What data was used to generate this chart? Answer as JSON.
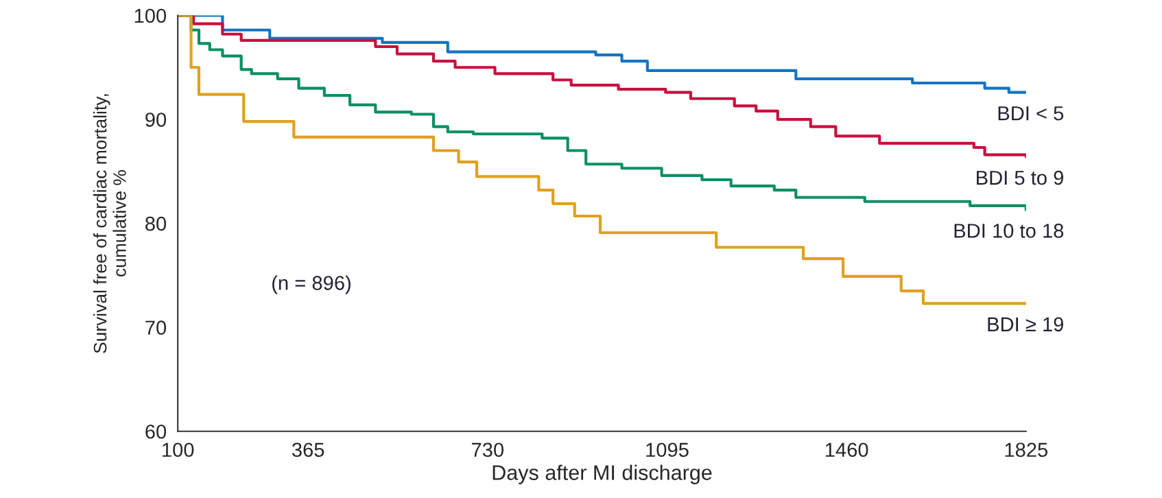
{
  "chart_data": {
    "type": "step",
    "xlabel": "Days after MI discharge",
    "ylabel": "Survival free of cardiac mortality,\ncumulative %",
    "annotations": [
      "(n = 896)"
    ],
    "xlim": [
      100,
      1825
    ],
    "xticks": [
      100,
      365,
      730,
      1095,
      1460,
      1825
    ],
    "ylim": [
      60,
      100
    ],
    "yticks": [
      60,
      70,
      80,
      90,
      100
    ],
    "grid": false,
    "legend": false,
    "line_style": "solid",
    "marker": "none",
    "series": [
      {
        "name": "BDI < 5",
        "color": "#1474c4",
        "x": [
          100,
          191,
          287,
          516,
          649,
          950,
          1003,
          1055,
          1357,
          1594,
          1741,
          1790,
          1825
        ],
        "values": [
          100,
          98.6,
          97.8,
          97.4,
          96.5,
          96.2,
          95.6,
          94.7,
          93.9,
          93.5,
          93.0,
          92.6,
          92.6
        ]
      },
      {
        "name": "BDI 5 to 9",
        "color": "#c8103e",
        "x": [
          100,
          132,
          191,
          229,
          502,
          546,
          620,
          664,
          745,
          863,
          900,
          996,
          1092,
          1143,
          1232,
          1276,
          1320,
          1387,
          1438,
          1527,
          1719,
          1741,
          1825
        ],
        "values": [
          100,
          99.2,
          98.2,
          97.6,
          97.0,
          96.3,
          95.6,
          95.0,
          94.4,
          93.8,
          93.3,
          92.9,
          92.6,
          92.0,
          91.3,
          90.8,
          90.0,
          89.3,
          88.4,
          87.7,
          87.3,
          86.6,
          86.4
        ]
      },
      {
        "name": "BDI 10 to 18",
        "color": "#0a9060",
        "x": [
          100,
          127,
          143,
          165,
          191,
          229,
          250,
          303,
          346,
          398,
          450,
          502,
          575,
          620,
          649,
          701,
          841,
          893,
          930,
          1003,
          1084,
          1166,
          1225,
          1313,
          1357,
          1497,
          1711,
          1825
        ],
        "values": [
          100,
          98.6,
          97.3,
          96.7,
          96.1,
          94.8,
          94.4,
          93.9,
          93.0,
          92.3,
          91.4,
          90.7,
          90.5,
          89.3,
          88.8,
          88.6,
          88.2,
          87.0,
          85.7,
          85.3,
          84.6,
          84.2,
          83.6,
          83.2,
          82.5,
          82.1,
          81.7,
          81.3
        ]
      },
      {
        "name": "BDI ≥ 19",
        "color": "#e0a020",
        "x": [
          100,
          127,
          143,
          234,
          336,
          620,
          671,
          708,
          834,
          863,
          907,
          959,
          1195,
          1372,
          1453,
          1571,
          1616,
          1825
        ],
        "values": [
          100,
          95.0,
          92.4,
          89.8,
          88.3,
          87.0,
          85.9,
          84.5,
          83.2,
          81.9,
          80.7,
          79.1,
          77.7,
          76.6,
          74.9,
          73.5,
          72.3,
          72.3
        ]
      }
    ]
  }
}
